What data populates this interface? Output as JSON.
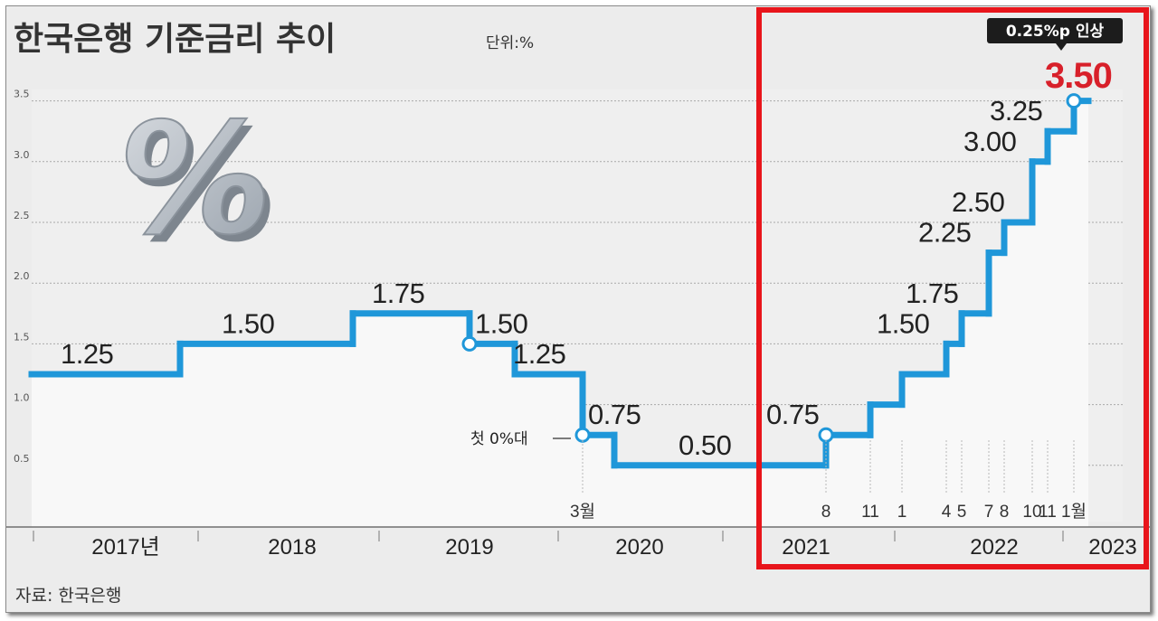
{
  "title": "한국은행 기준금리 추이",
  "unit_label": "단위:%",
  "source": "자료:  한국은행",
  "first_zero_note": "첫 0%대",
  "highlight_badge": "0.25%p 인상",
  "latest_value_label": "3.50",
  "colors": {
    "line": "#1f97d9",
    "latest": "#d8202a",
    "highlight_box": "#e8151b",
    "badge": "#1c1c1c",
    "background": "#ececec"
  },
  "chart_data": {
    "type": "line",
    "title": "한국은행 기준금리 추이",
    "unit": "%",
    "ylim": [
      0,
      3.5
    ],
    "y_ticks": [
      "0.5",
      "1.0",
      "1.5",
      "2.0",
      "2.5",
      "3.0",
      "3.5"
    ],
    "grid": true,
    "x_years": [
      "2017년",
      "2018",
      "2019",
      "2020",
      "2021",
      "2022",
      "2023"
    ],
    "month_labels": [
      "3월",
      "8",
      "11",
      "1",
      "4",
      "5",
      "7",
      "8",
      "10",
      "11",
      "1월"
    ],
    "series": [
      {
        "values": [
          1.25,
          1.5,
          1.75,
          1.5,
          1.25,
          0.75,
          0.5,
          0.75,
          1.0,
          1.25,
          1.5,
          1.75,
          2.25,
          2.5,
          3.0,
          3.25,
          3.5
        ],
        "labels": [
          "1.25",
          "1.50",
          "1.75",
          "1.50",
          "1.25",
          "0.75",
          "0.50",
          "0.75",
          "",
          "",
          "1.50",
          "1.75",
          "2.25",
          "2.50",
          "3.00",
          "3.25",
          "3.50"
        ]
      }
    ],
    "annotations": [
      {
        "text": "첫 0%대",
        "at_value": 0.75
      },
      {
        "text": "0.25%p 인상",
        "at_value": 3.5
      }
    ]
  }
}
